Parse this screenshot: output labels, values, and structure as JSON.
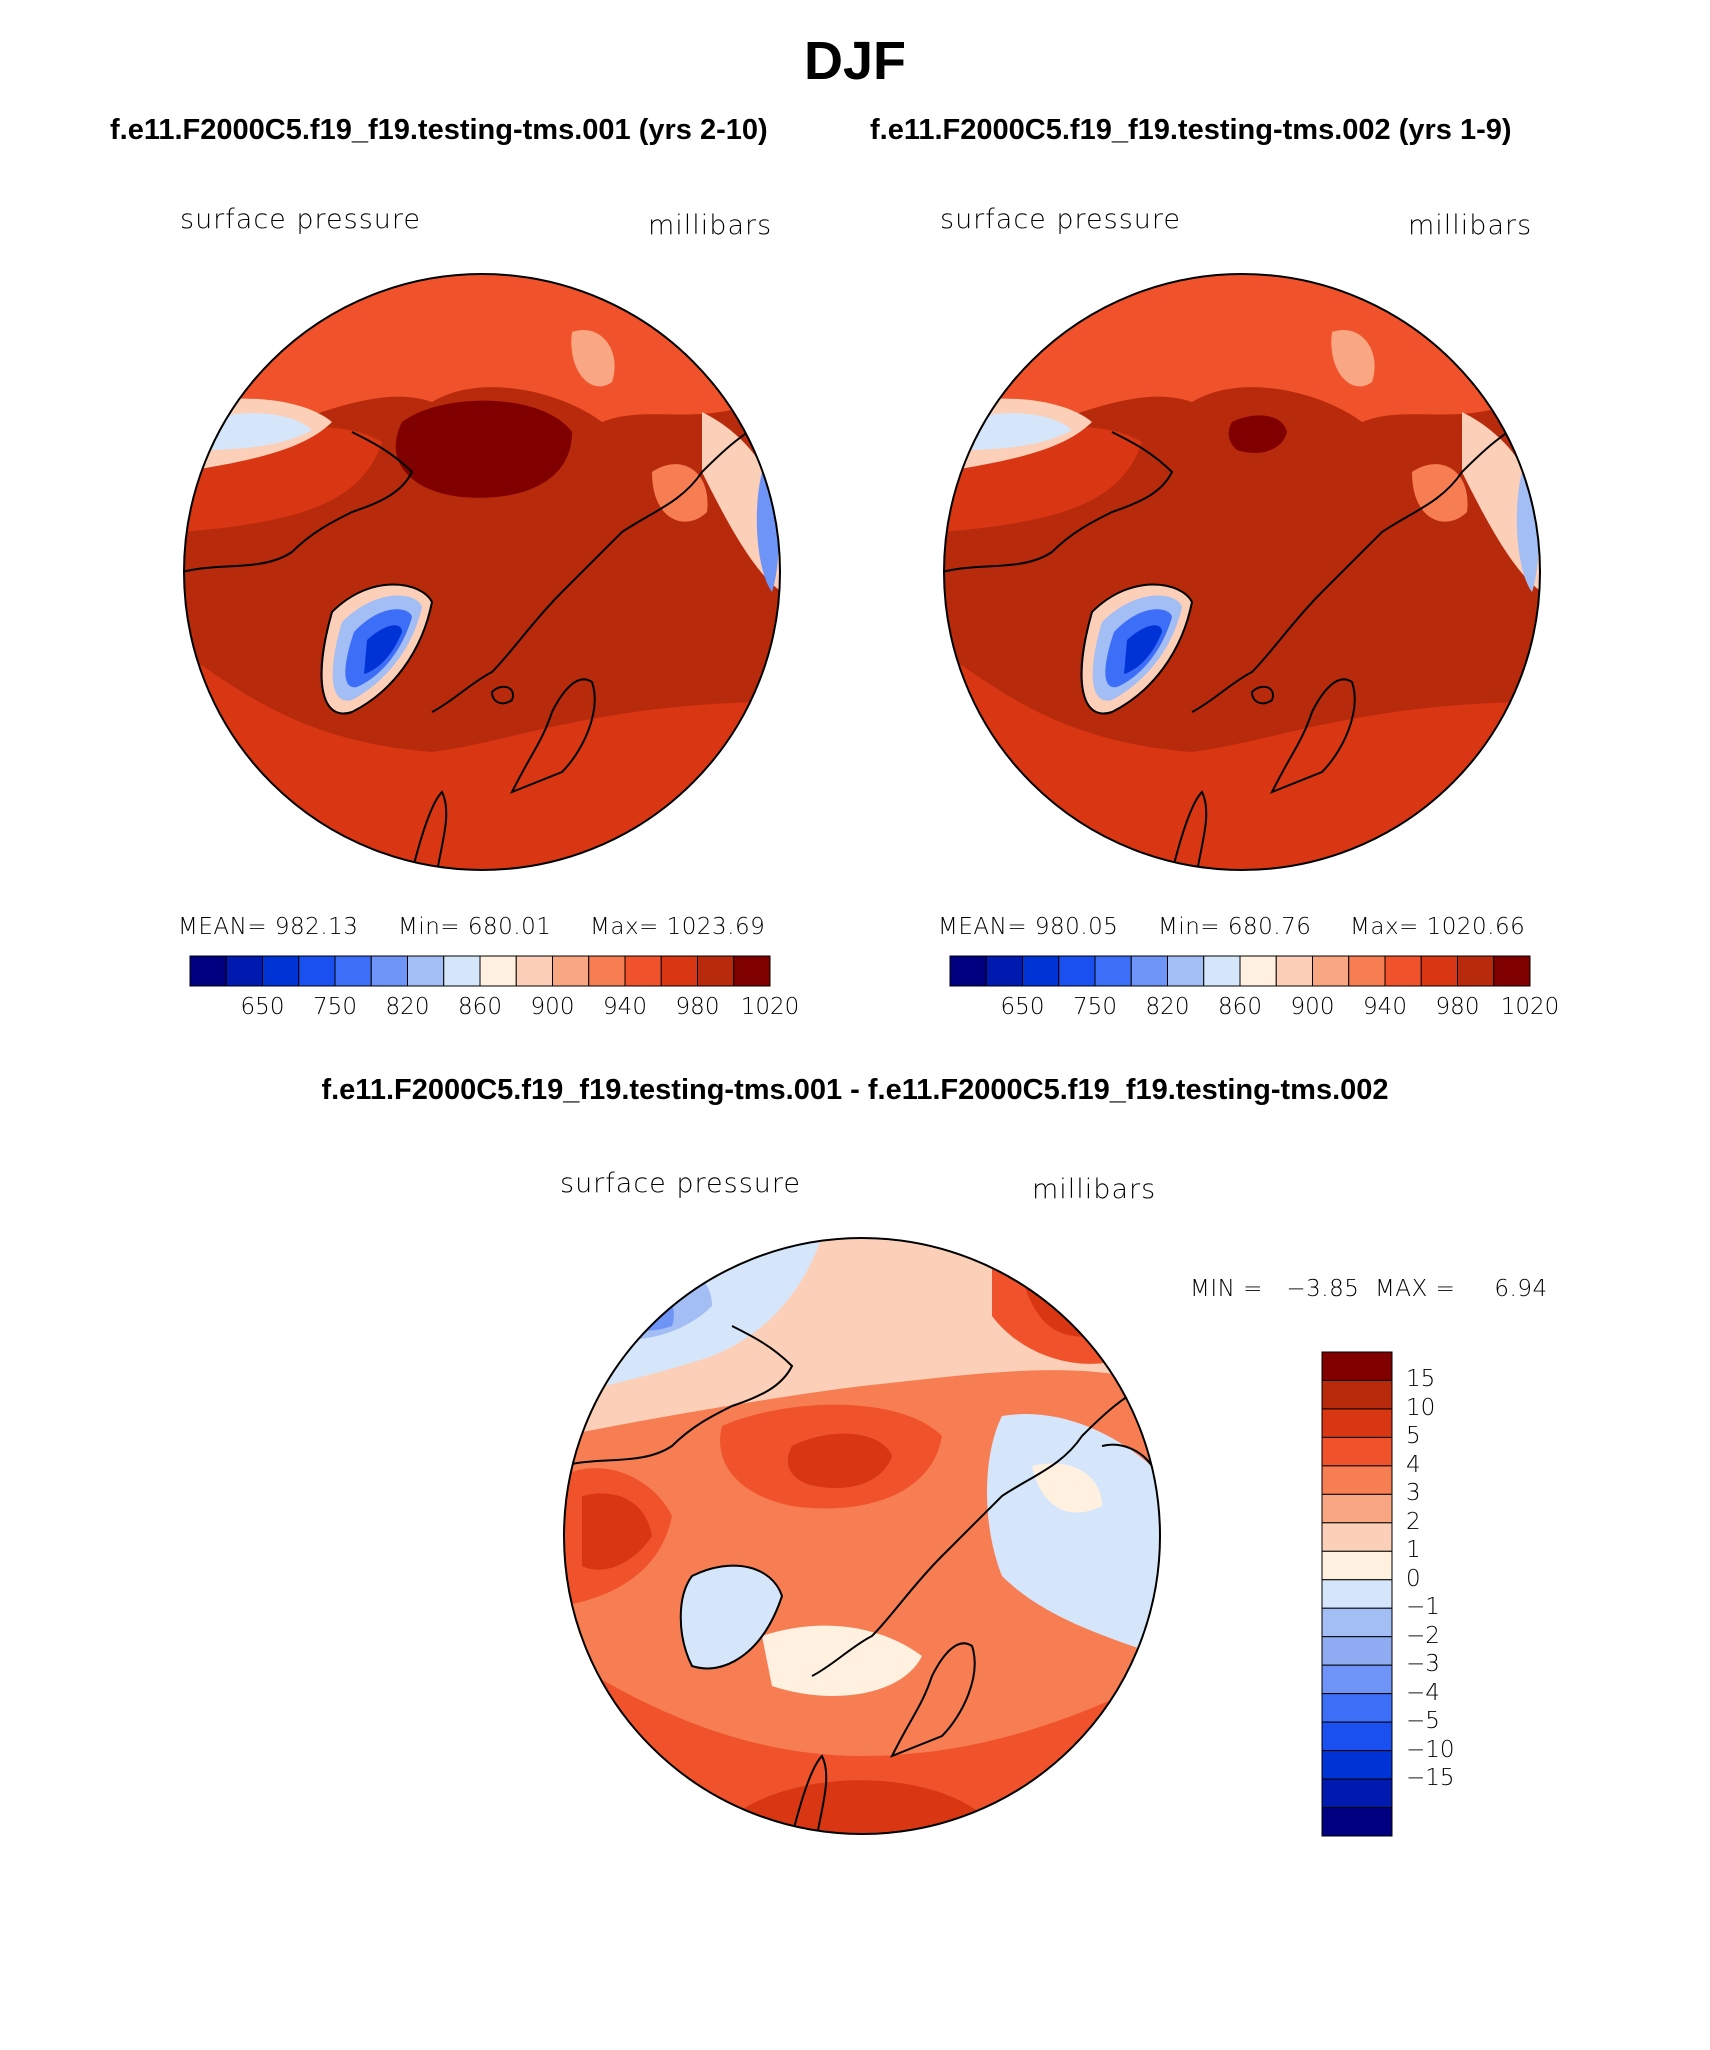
{
  "title": "DJF",
  "runs": {
    "left": "f.e11.F2000C5.f19_f19.testing-tms.001 (yrs 2-10)",
    "right": "f.e11.F2000C5.f19_f19.testing-tms.002 (yrs 1-9)"
  },
  "panels": [
    {
      "variable": "surface pressure",
      "units": "millibars",
      "mean_text": "MEAN= 982.13",
      "min_text": "Min= 680.01",
      "max_text": "Max= 1023.69"
    },
    {
      "variable": "surface pressure",
      "units": "millibars",
      "mean_text": "MEAN= 980.05",
      "min_text": "Min= 680.76",
      "max_text": "Max= 1020.66"
    }
  ],
  "diff": {
    "title": "f.e11.F2000C5.f19_f19.testing-tms.001 - f.e11.F2000C5.f19_f19.testing-tms.002",
    "variable": "surface pressure",
    "units": "millibars",
    "minmax_text": "MIN =   −3.85  MAX =     6.94"
  },
  "horizontal_colorbar": {
    "colors": [
      "#000080",
      "#001ab0",
      "#0033d6",
      "#1a4ff0",
      "#3d6ef7",
      "#6f94f7",
      "#a3bdf5",
      "#d6e6fa",
      "#fff0e0",
      "#fcd0b8",
      "#f9a783",
      "#f77d52",
      "#f0532b",
      "#d93613",
      "#b82a0c",
      "#800000"
    ],
    "tick_labels": [
      "650",
      "750",
      "820",
      "860",
      "900",
      "940",
      "980",
      "1020"
    ]
  },
  "vertical_colorbar": {
    "colors": [
      "#800000",
      "#b82a0c",
      "#d93613",
      "#f0532b",
      "#f77d52",
      "#f9a783",
      "#fcd0b8",
      "#fff0e0",
      "#d6e6fa",
      "#a3bdf5",
      "#8fabf2",
      "#6f94f7",
      "#3d6ef7",
      "#1a4ff0",
      "#0033d6",
      "#001ab0",
      "#000080"
    ],
    "tick_labels": [
      "15",
      "10",
      "5",
      "4",
      "3",
      "2",
      "1",
      "0",
      "−1",
      "−2",
      "−3",
      "−4",
      "−5",
      "−10",
      "−15"
    ]
  },
  "map_colors": {
    "border": "#000000",
    "coast": "#000000",
    "red_dark": "#800000",
    "red_base": "#b82a0c",
    "red_mid": "#d93613",
    "red_light": "#f0532b",
    "red_pale": "#f77d52",
    "salmon": "#f9a783",
    "peach": "#fcd0b8",
    "cream": "#fff0e0",
    "blue_pale": "#d6e6fa",
    "blue_light": "#a3bdf5",
    "blue_mid": "#6f94f7",
    "blue": "#3d6ef7",
    "blue_dark": "#0033d6"
  }
}
